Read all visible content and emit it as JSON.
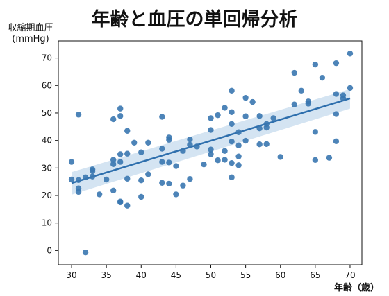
{
  "chart_data": {
    "type": "scatter",
    "title": "年齢と血圧の単回帰分析",
    "xlabel": "年齢（歳）",
    "ylabel": "収縮期血圧\n(mmHg)",
    "xlim": [
      28.1,
      71.7
    ],
    "ylim": [
      -5.2,
      76.2
    ],
    "xticks": [
      30,
      35,
      40,
      45,
      50,
      55,
      60,
      65,
      70
    ],
    "yticks": [
      0,
      10,
      20,
      30,
      40,
      50,
      60,
      70
    ],
    "grid": false,
    "point_color": "#3a77b0",
    "line_color": "#2e6fad",
    "band_color": "#a9c9e6",
    "regression": {
      "x": [
        30,
        70
      ],
      "y": [
        24.5,
        55.3
      ],
      "ci_lower": [
        20.3,
        51.6
      ],
      "ci_upper": [
        28.5,
        58.7
      ]
    },
    "points": [
      [
        30,
        32.2
      ],
      [
        30,
        25.8
      ],
      [
        31,
        49.4
      ],
      [
        31,
        25.6
      ],
      [
        31,
        22.6
      ],
      [
        31,
        21.3
      ],
      [
        32,
        -0.7
      ],
      [
        32,
        26.6
      ],
      [
        33,
        29.5
      ],
      [
        33,
        28.9
      ],
      [
        33,
        26.9
      ],
      [
        34,
        20.4
      ],
      [
        35,
        25.8
      ],
      [
        36,
        47.7
      ],
      [
        36,
        33.0
      ],
      [
        36,
        31.4
      ],
      [
        36,
        21.8
      ],
      [
        37,
        51.6
      ],
      [
        37,
        48.9
      ],
      [
        37,
        35.0
      ],
      [
        37,
        32.2
      ],
      [
        37,
        17.8
      ],
      [
        37,
        17.5
      ],
      [
        38,
        43.5
      ],
      [
        38,
        35.2
      ],
      [
        38,
        26.1
      ],
      [
        38,
        16.3
      ],
      [
        39,
        39.2
      ],
      [
        40,
        35.7
      ],
      [
        40,
        25.5
      ],
      [
        40,
        19.5
      ],
      [
        41,
        39.2
      ],
      [
        41,
        27.7
      ],
      [
        43,
        48.6
      ],
      [
        43,
        37.0
      ],
      [
        43,
        32.2
      ],
      [
        43,
        24.6
      ],
      [
        44,
        41.1
      ],
      [
        44,
        40.2
      ],
      [
        44,
        32.0
      ],
      [
        44,
        24.3
      ],
      [
        45,
        30.7
      ],
      [
        45,
        20.4
      ],
      [
        46,
        36.2
      ],
      [
        46,
        23.6
      ],
      [
        47,
        40.4
      ],
      [
        47,
        38.4
      ],
      [
        47,
        26.0
      ],
      [
        48,
        37.8
      ],
      [
        49,
        31.3
      ],
      [
        50,
        48.1
      ],
      [
        50,
        43.8
      ],
      [
        50,
        36.7
      ],
      [
        50,
        35.0
      ],
      [
        51,
        49.2
      ],
      [
        51,
        32.8
      ],
      [
        52,
        51.9
      ],
      [
        52,
        36.2
      ],
      [
        52,
        33.0
      ],
      [
        53,
        58.1
      ],
      [
        53,
        50.3
      ],
      [
        53,
        46.0
      ],
      [
        53,
        39.6
      ],
      [
        53,
        31.8
      ],
      [
        53,
        26.6
      ],
      [
        54,
        43.0
      ],
      [
        54,
        38.2
      ],
      [
        54,
        34.2
      ],
      [
        54,
        31.0
      ],
      [
        55,
        55.5
      ],
      [
        55,
        48.8
      ],
      [
        55,
        39.9
      ],
      [
        56,
        54.0
      ],
      [
        57,
        48.9
      ],
      [
        57,
        44.4
      ],
      [
        57,
        38.6
      ],
      [
        58,
        46.0
      ],
      [
        58,
        44.7
      ],
      [
        58,
        38.7
      ],
      [
        59,
        48.1
      ],
      [
        60,
        34.0
      ],
      [
        62,
        64.6
      ],
      [
        62,
        53.1
      ],
      [
        63,
        58.1
      ],
      [
        64,
        54.2
      ],
      [
        64,
        53.4
      ],
      [
        65,
        67.6
      ],
      [
        65,
        43.1
      ],
      [
        65,
        32.9
      ],
      [
        66,
        62.8
      ],
      [
        67,
        33.7
      ],
      [
        68,
        68.1
      ],
      [
        68,
        56.9
      ],
      [
        68,
        49.6
      ],
      [
        68,
        39.7
      ],
      [
        69,
        56.4
      ],
      [
        69,
        55.3
      ],
      [
        70,
        71.6
      ],
      [
        70,
        59.1
      ]
    ]
  }
}
